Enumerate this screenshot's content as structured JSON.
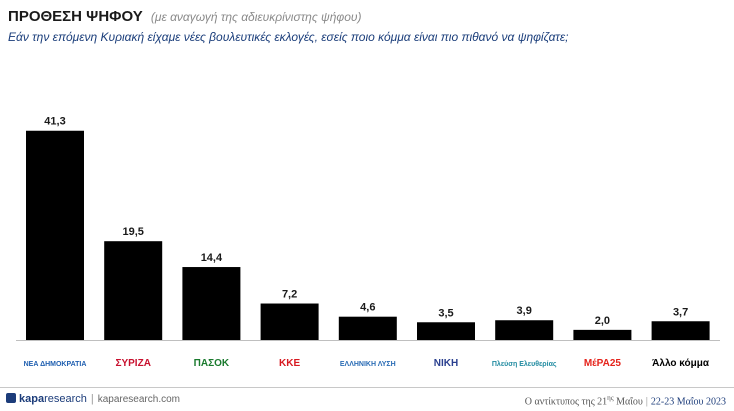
{
  "header": {
    "title": "ΠΡΟΘΕΣΗ ΨΗΦΟΥ",
    "title_note": "(με αναγωγή της αδιευκρίνιστης ψήφου)",
    "question": "Εάν την επόμενη Κυριακή είχαμε νέες βουλευτικές εκλογές, εσείς ποιο κόμμα είναι πιο πιθανό να ψηφίζατε;"
  },
  "chart_data": {
    "type": "bar",
    "categories": [
      "ΝΔ",
      "ΣΥΡΙΖΑ",
      "ΠΑΣΟΚ",
      "ΚΚΕ",
      "ΕΛΛΗΝΙΚΗ ΛΥΣΗ",
      "ΝΙΚΗ",
      "Πλεύση Ελευθερίας",
      "ΜέΡΑ25",
      "Άλλο κόμμα"
    ],
    "values": [
      41.3,
      19.5,
      14.4,
      7.2,
      4.6,
      3.5,
      3.9,
      2.0,
      3.7
    ],
    "value_labels": [
      "41,3",
      "19,5",
      "14,4",
      "7,2",
      "4,6",
      "3,5",
      "3,9",
      "2,0",
      "3,7"
    ],
    "ylim": [
      0,
      45
    ],
    "bar_color": "#000000",
    "grid": false,
    "logo_texts": [
      "ΝΕΑ ΔΗΜΟΚΡΑΤΙΑ",
      "ΣΥΡΙΖΑ",
      "ΠΑΣΟΚ",
      "ΚΚΕ",
      "ΕΛΛΗΝΙΚΗ ΛΥΣΗ",
      "ΝΙΚΗ",
      "Πλεύση Ελευθερίας",
      "ΜέΡΑ25",
      "Άλλο κόμμα"
    ],
    "logo_colors": [
      "#1f5fb0",
      "#c8102e",
      "#1a7a2e",
      "#d71920",
      "#2a6cb5",
      "#2a3f8f",
      "#1f8aa0",
      "#e5231b",
      "#000000"
    ]
  },
  "footer": {
    "brand_bold": "kapa",
    "brand_rest": "research",
    "url": "kaparesearch.com",
    "caption": "Ο αντίκτυπος της 21",
    "caption_sup": "ης",
    "caption_end": " Μαΐου",
    "dates": "22-23 Μαΐου 2023"
  }
}
